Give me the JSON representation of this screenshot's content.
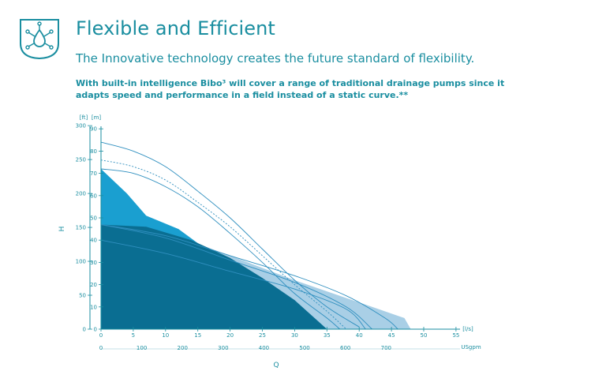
{
  "header": {
    "title": "Flexible and Efficient",
    "subtitle": "The Innovative technology creates the future standard of flexibility.",
    "description": "With built-in intelligence Bibo³ will cover a range of traditional drainage pumps since it adapts speed and performance in a field instead of a static curve.**",
    "badge_icon": "water-drop-network-icon"
  },
  "colors": {
    "accent": "#1a8ea0",
    "area_dark": "#0a6e92",
    "area_mid": "#1a9fd0",
    "area_light": "#a9cfe6",
    "curve": "#2f8fbf"
  },
  "chart_data": {
    "type": "area",
    "ylabel": "H",
    "xlabel": "Q",
    "y_units_left": "[ft]",
    "y_units_right": "[m]",
    "x_units_top": "[l/s]",
    "x_units_bottom": "USgpm",
    "x_ticks_ls": [
      "0",
      "5",
      "10",
      "15",
      "20",
      "25",
      "30",
      "35",
      "40",
      "45",
      "50",
      "55"
    ],
    "x_ticks_usgpm": [
      "0",
      "100",
      "200",
      "300",
      "400",
      "500",
      "600",
      "700"
    ],
    "y_ticks_m": [
      "0",
      "10",
      "20",
      "30",
      "40",
      "50",
      "60",
      "70",
      "80",
      "90"
    ],
    "y_ticks_ft": [
      "0",
      "50",
      "100",
      "150",
      "200",
      "250",
      "300"
    ],
    "xlim": [
      0,
      55
    ],
    "ylim": [
      0,
      90
    ],
    "regions": [
      {
        "shade": "light",
        "points": [
          [
            0,
            0
          ],
          [
            0,
            47
          ],
          [
            7,
            47
          ],
          [
            20,
            33
          ],
          [
            30,
            22
          ],
          [
            35,
            17
          ],
          [
            42,
            10
          ],
          [
            47,
            5
          ],
          [
            48,
            0
          ]
        ]
      },
      {
        "shade": "mid",
        "points": [
          [
            0,
            0
          ],
          [
            0,
            72
          ],
          [
            4,
            61
          ],
          [
            7,
            51
          ],
          [
            12,
            45
          ],
          [
            20,
            28
          ],
          [
            25,
            22
          ],
          [
            30,
            13
          ],
          [
            35,
            0
          ]
        ]
      },
      {
        "shade": "dark",
        "points": [
          [
            0,
            0
          ],
          [
            0,
            47
          ],
          [
            7,
            46
          ],
          [
            14,
            40
          ],
          [
            20,
            32
          ],
          [
            25,
            23
          ],
          [
            30,
            13
          ],
          [
            35,
            0
          ]
        ]
      }
    ],
    "series": [
      {
        "values": [
          [
            0,
            84
          ],
          [
            5,
            80
          ],
          [
            10,
            73
          ],
          [
            15,
            62
          ],
          [
            20,
            50
          ],
          [
            25,
            36
          ],
          [
            30,
            22
          ],
          [
            35,
            10
          ],
          [
            40,
            1
          ]
        ]
      },
      {
        "values": [
          [
            0,
            76
          ],
          [
            5,
            73
          ],
          [
            10,
            67
          ],
          [
            15,
            57
          ],
          [
            20,
            46
          ],
          [
            25,
            33
          ],
          [
            30,
            20
          ],
          [
            35,
            8
          ],
          [
            38,
            0
          ]
        ]
      },
      {
        "values": [
          [
            0,
            72
          ],
          [
            5,
            70
          ],
          [
            10,
            64
          ],
          [
            15,
            55
          ],
          [
            20,
            43
          ],
          [
            25,
            30
          ],
          [
            30,
            16
          ],
          [
            35,
            5
          ],
          [
            37,
            0
          ]
        ]
      },
      {
        "values": [
          [
            0,
            47
          ],
          [
            10,
            42
          ],
          [
            20,
            33
          ],
          [
            30,
            24
          ],
          [
            38,
            15
          ],
          [
            44,
            5
          ],
          [
            46,
            0
          ]
        ]
      },
      {
        "values": [
          [
            0,
            47
          ],
          [
            10,
            41
          ],
          [
            20,
            31
          ],
          [
            30,
            21
          ],
          [
            38,
            10
          ],
          [
            42,
            0
          ]
        ]
      },
      {
        "values": [
          [
            0,
            40
          ],
          [
            10,
            34
          ],
          [
            20,
            26
          ],
          [
            30,
            18
          ],
          [
            38,
            9
          ],
          [
            41,
            0
          ]
        ]
      }
    ],
    "grid": false,
    "legend": "none"
  }
}
